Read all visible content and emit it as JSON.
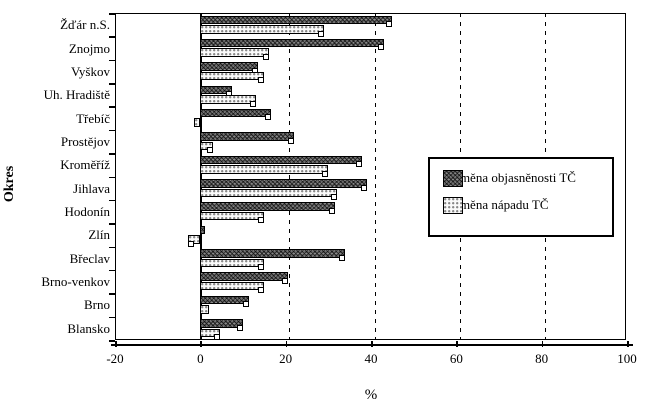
{
  "chart_data": {
    "type": "bar",
    "orientation": "horizontal",
    "title": "",
    "xlabel": "%",
    "ylabel": "Okres",
    "xlim": [
      -20,
      100
    ],
    "xticks": [
      -20,
      0,
      20,
      40,
      60,
      80,
      100
    ],
    "gridlines": [
      20,
      40,
      60,
      80
    ],
    "grid_style": "dashed-vertical",
    "legend_position": "middle-right",
    "categories": [
      "Žďár n.S.",
      "Znojmo",
      "Vyškov",
      "Uh. Hradiště",
      "Třebíč",
      "Prostějov",
      "Kroměříž",
      "Jihlava",
      "Hodonín",
      "Zlín",
      "Břeclav",
      "Brno-venkov",
      "Brno",
      "Blansko"
    ],
    "series": [
      {
        "name": "Změna objasněnosti TČ",
        "style": "dark",
        "values": [
          45,
          43,
          13.5,
          7.5,
          16.5,
          22,
          38,
          39,
          31.5,
          1,
          34,
          20.5,
          11.5,
          10
        ]
      },
      {
        "name": "Změna nápadu TČ",
        "style": "light",
        "values": [
          29,
          16,
          15,
          13,
          -1.5,
          3,
          30,
          32,
          15,
          -3,
          15,
          15,
          2,
          4.5
        ]
      }
    ]
  },
  "colors": {
    "ink": "#000000",
    "paper": "#ffffff",
    "bar_dark": "#6e6e6e",
    "bar_light": "#fafafa"
  }
}
